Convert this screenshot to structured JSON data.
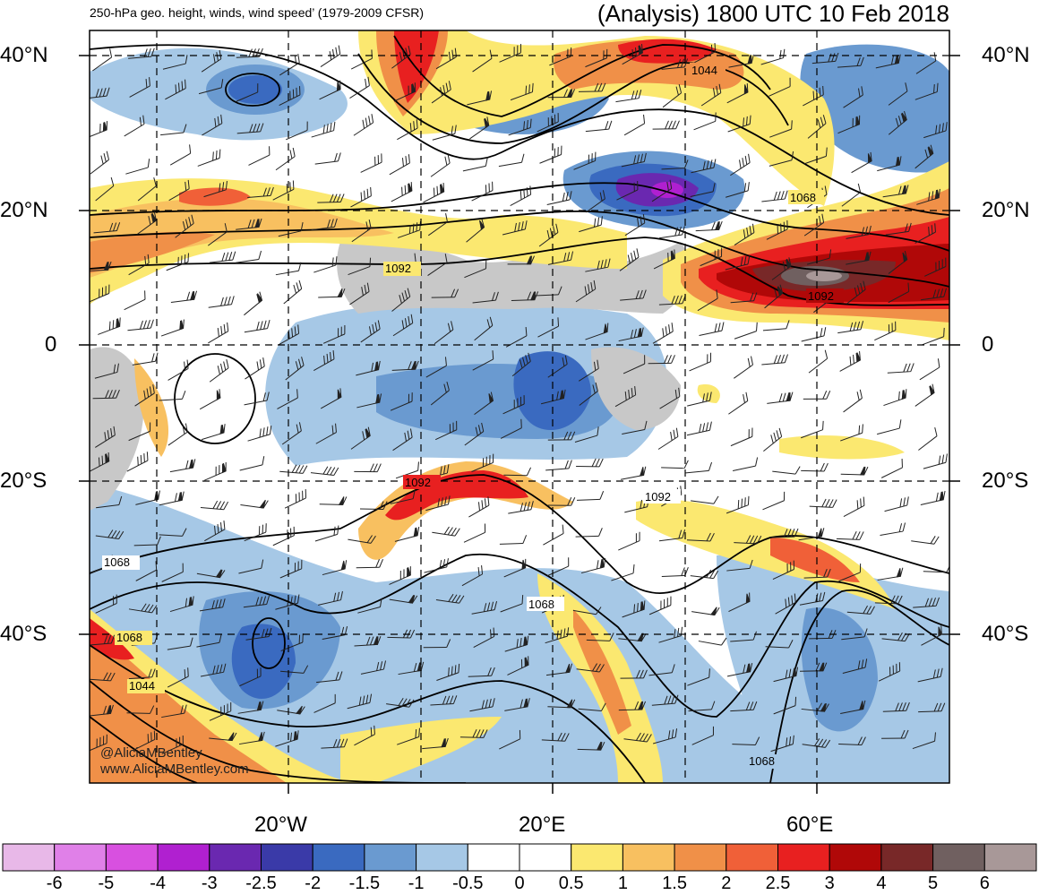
{
  "header": {
    "product": "250-hPa geo. height, winds, wind speed’ (1979-2009 CFSR)",
    "analysis_time": "(Analysis) 1800 UTC 10 Feb 2018"
  },
  "axes": {
    "lat_labels": [
      "40°N",
      "20°N",
      "0",
      "20°S",
      "40°S"
    ],
    "lon_labels": [
      "20°W",
      "20°E",
      "60°E"
    ]
  },
  "contours": {
    "labels": [
      "1044",
      "1068",
      "1092",
      "1092",
      "1092",
      "1092",
      "1068",
      "1044",
      "1068",
      "1068"
    ]
  },
  "credits": {
    "handle": "@AliciaMBentley",
    "site": "www.AliciaMBentley.com"
  },
  "colorbar": {
    "labels": [
      "-6",
      "-5",
      "-4",
      "-3",
      "-2.5",
      "-2",
      "-1.5",
      "-1",
      "-0.5",
      "0",
      "0.5",
      "1",
      "1.5",
      "2",
      "2.5",
      "3",
      "4",
      "5",
      "6"
    ],
    "colors": [
      "#e8b8e8",
      "#e080e8",
      "#d850e0",
      "#b020d0",
      "#6a28b0",
      "#3a3aa8",
      "#3a6ac0",
      "#6a9ad0",
      "#a6c8e6",
      "#ffffff",
      "#ffffff",
      "#fbe870",
      "#f8c060",
      "#f09048",
      "#f06038",
      "#e82020",
      "#b00808",
      "#782828",
      "#706060",
      "#a89898"
    ]
  }
}
